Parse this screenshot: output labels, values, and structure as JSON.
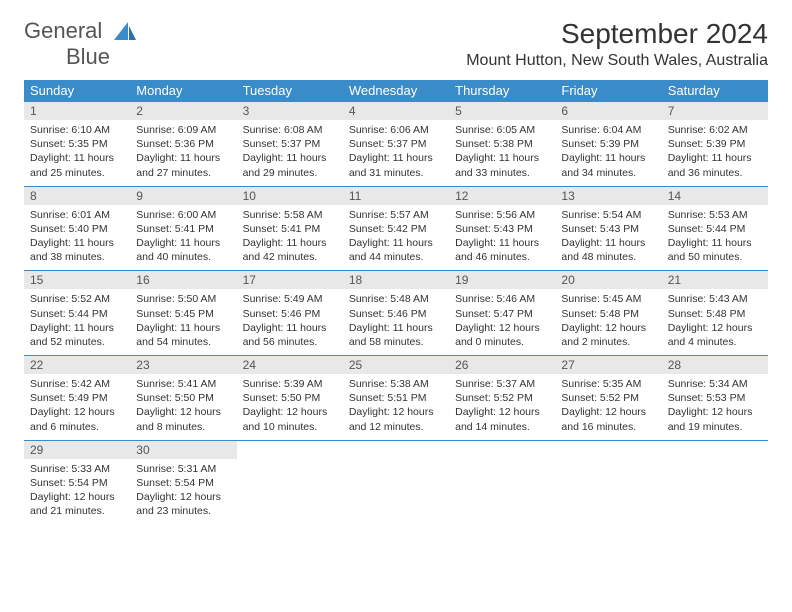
{
  "brand": {
    "text1": "General",
    "text2": "Blue"
  },
  "title": "September 2024",
  "location": "Mount Hutton, New South Wales, Australia",
  "colors": {
    "accent": "#3a8bc9",
    "header_text": "#ffffff",
    "daynum_bg": "#e8e8e8",
    "text": "#333333"
  },
  "weekdays": [
    "Sunday",
    "Monday",
    "Tuesday",
    "Wednesday",
    "Thursday",
    "Friday",
    "Saturday"
  ],
  "days": [
    {
      "n": "1",
      "sr": "Sunrise: 6:10 AM",
      "ss": "Sunset: 5:35 PM",
      "dl": "Daylight: 11 hours and 25 minutes."
    },
    {
      "n": "2",
      "sr": "Sunrise: 6:09 AM",
      "ss": "Sunset: 5:36 PM",
      "dl": "Daylight: 11 hours and 27 minutes."
    },
    {
      "n": "3",
      "sr": "Sunrise: 6:08 AM",
      "ss": "Sunset: 5:37 PM",
      "dl": "Daylight: 11 hours and 29 minutes."
    },
    {
      "n": "4",
      "sr": "Sunrise: 6:06 AM",
      "ss": "Sunset: 5:37 PM",
      "dl": "Daylight: 11 hours and 31 minutes."
    },
    {
      "n": "5",
      "sr": "Sunrise: 6:05 AM",
      "ss": "Sunset: 5:38 PM",
      "dl": "Daylight: 11 hours and 33 minutes."
    },
    {
      "n": "6",
      "sr": "Sunrise: 6:04 AM",
      "ss": "Sunset: 5:39 PM",
      "dl": "Daylight: 11 hours and 34 minutes."
    },
    {
      "n": "7",
      "sr": "Sunrise: 6:02 AM",
      "ss": "Sunset: 5:39 PM",
      "dl": "Daylight: 11 hours and 36 minutes."
    },
    {
      "n": "8",
      "sr": "Sunrise: 6:01 AM",
      "ss": "Sunset: 5:40 PM",
      "dl": "Daylight: 11 hours and 38 minutes."
    },
    {
      "n": "9",
      "sr": "Sunrise: 6:00 AM",
      "ss": "Sunset: 5:41 PM",
      "dl": "Daylight: 11 hours and 40 minutes."
    },
    {
      "n": "10",
      "sr": "Sunrise: 5:58 AM",
      "ss": "Sunset: 5:41 PM",
      "dl": "Daylight: 11 hours and 42 minutes."
    },
    {
      "n": "11",
      "sr": "Sunrise: 5:57 AM",
      "ss": "Sunset: 5:42 PM",
      "dl": "Daylight: 11 hours and 44 minutes."
    },
    {
      "n": "12",
      "sr": "Sunrise: 5:56 AM",
      "ss": "Sunset: 5:43 PM",
      "dl": "Daylight: 11 hours and 46 minutes."
    },
    {
      "n": "13",
      "sr": "Sunrise: 5:54 AM",
      "ss": "Sunset: 5:43 PM",
      "dl": "Daylight: 11 hours and 48 minutes."
    },
    {
      "n": "14",
      "sr": "Sunrise: 5:53 AM",
      "ss": "Sunset: 5:44 PM",
      "dl": "Daylight: 11 hours and 50 minutes."
    },
    {
      "n": "15",
      "sr": "Sunrise: 5:52 AM",
      "ss": "Sunset: 5:44 PM",
      "dl": "Daylight: 11 hours and 52 minutes."
    },
    {
      "n": "16",
      "sr": "Sunrise: 5:50 AM",
      "ss": "Sunset: 5:45 PM",
      "dl": "Daylight: 11 hours and 54 minutes."
    },
    {
      "n": "17",
      "sr": "Sunrise: 5:49 AM",
      "ss": "Sunset: 5:46 PM",
      "dl": "Daylight: 11 hours and 56 minutes."
    },
    {
      "n": "18",
      "sr": "Sunrise: 5:48 AM",
      "ss": "Sunset: 5:46 PM",
      "dl": "Daylight: 11 hours and 58 minutes."
    },
    {
      "n": "19",
      "sr": "Sunrise: 5:46 AM",
      "ss": "Sunset: 5:47 PM",
      "dl": "Daylight: 12 hours and 0 minutes."
    },
    {
      "n": "20",
      "sr": "Sunrise: 5:45 AM",
      "ss": "Sunset: 5:48 PM",
      "dl": "Daylight: 12 hours and 2 minutes."
    },
    {
      "n": "21",
      "sr": "Sunrise: 5:43 AM",
      "ss": "Sunset: 5:48 PM",
      "dl": "Daylight: 12 hours and 4 minutes."
    },
    {
      "n": "22",
      "sr": "Sunrise: 5:42 AM",
      "ss": "Sunset: 5:49 PM",
      "dl": "Daylight: 12 hours and 6 minutes."
    },
    {
      "n": "23",
      "sr": "Sunrise: 5:41 AM",
      "ss": "Sunset: 5:50 PM",
      "dl": "Daylight: 12 hours and 8 minutes."
    },
    {
      "n": "24",
      "sr": "Sunrise: 5:39 AM",
      "ss": "Sunset: 5:50 PM",
      "dl": "Daylight: 12 hours and 10 minutes."
    },
    {
      "n": "25",
      "sr": "Sunrise: 5:38 AM",
      "ss": "Sunset: 5:51 PM",
      "dl": "Daylight: 12 hours and 12 minutes."
    },
    {
      "n": "26",
      "sr": "Sunrise: 5:37 AM",
      "ss": "Sunset: 5:52 PM",
      "dl": "Daylight: 12 hours and 14 minutes."
    },
    {
      "n": "27",
      "sr": "Sunrise: 5:35 AM",
      "ss": "Sunset: 5:52 PM",
      "dl": "Daylight: 12 hours and 16 minutes."
    },
    {
      "n": "28",
      "sr": "Sunrise: 5:34 AM",
      "ss": "Sunset: 5:53 PM",
      "dl": "Daylight: 12 hours and 19 minutes."
    },
    {
      "n": "29",
      "sr": "Sunrise: 5:33 AM",
      "ss": "Sunset: 5:54 PM",
      "dl": "Daylight: 12 hours and 21 minutes."
    },
    {
      "n": "30",
      "sr": "Sunrise: 5:31 AM",
      "ss": "Sunset: 5:54 PM",
      "dl": "Daylight: 12 hours and 23 minutes."
    }
  ]
}
